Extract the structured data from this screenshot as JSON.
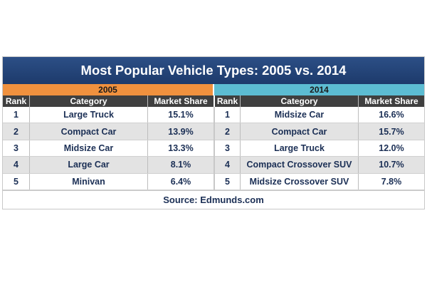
{
  "title": "Most Popular Vehicle Types: 2005 vs. 2014",
  "years": {
    "left": "2005",
    "right": "2014"
  },
  "headers": {
    "rank": "Rank",
    "category": "Category",
    "share": "Market Share"
  },
  "table_2005": [
    {
      "rank": "1",
      "category": "Large Truck",
      "share": "15.1%"
    },
    {
      "rank": "2",
      "category": "Compact Car",
      "share": "13.9%"
    },
    {
      "rank": "3",
      "category": "Midsize Car",
      "share": "13.3%"
    },
    {
      "rank": "4",
      "category": "Large Car",
      "share": "8.1%"
    },
    {
      "rank": "5",
      "category": "Minivan",
      "share": "6.4%"
    }
  ],
  "table_2014": [
    {
      "rank": "1",
      "category": "Midsize Car",
      "share": "16.6%"
    },
    {
      "rank": "2",
      "category": "Compact Car",
      "share": "15.7%"
    },
    {
      "rank": "3",
      "category": "Large Truck",
      "share": "12.0%"
    },
    {
      "rank": "4",
      "category": "Compact Crossover SUV",
      "share": "10.7%"
    },
    {
      "rank": "5",
      "category": "Midsize Crossover SUV",
      "share": "7.8%"
    }
  ],
  "source": "Source: Edmunds.com",
  "colors": {
    "title_bg": "#1d3a6b",
    "year_2005": "#f0913e",
    "year_2014": "#5cbcd2",
    "header_bg": "#3f3f3f",
    "text": "#1b2f55"
  }
}
